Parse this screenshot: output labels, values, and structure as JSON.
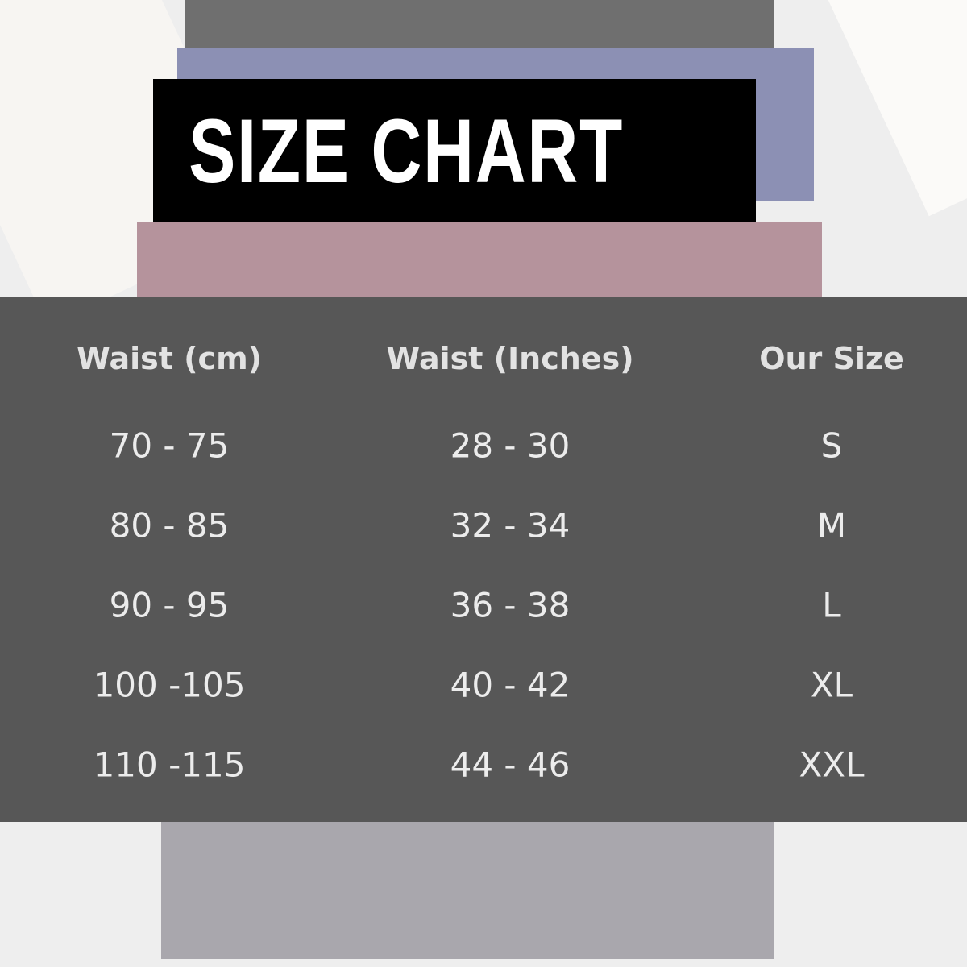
{
  "title": "SIZE CHART",
  "table": {
    "header": [
      "Waist (cm)",
      "Waist (Inches)",
      "Our Size"
    ],
    "rows": [
      [
        "70 - 75",
        "28 - 30",
        "S"
      ],
      [
        "80 - 85",
        "32 - 34",
        "M"
      ],
      [
        "90 - 95",
        "36 - 38",
        "L"
      ],
      [
        "100 -105",
        "40 - 42",
        "XL"
      ],
      [
        "110 -115",
        "44 - 46",
        "XXL"
      ]
    ]
  }
}
